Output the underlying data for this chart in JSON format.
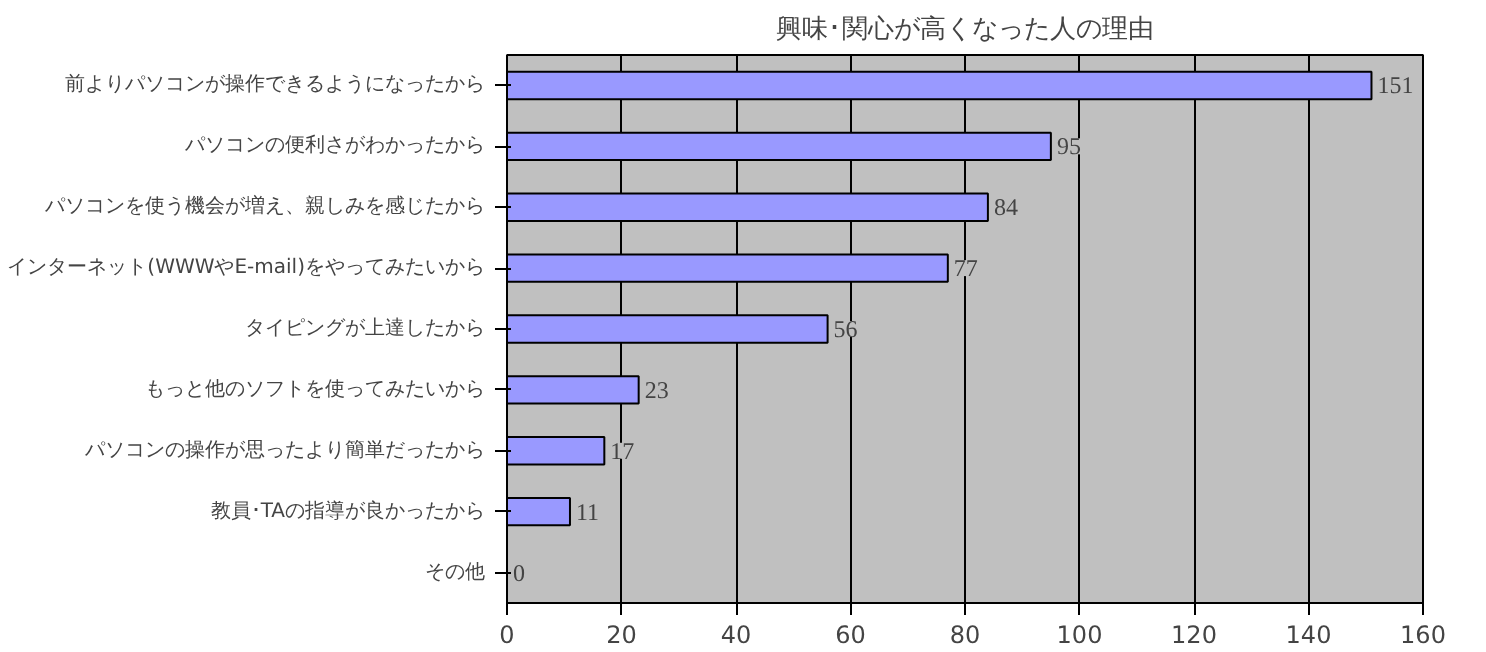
{
  "chart_data": {
    "type": "bar",
    "orientation": "horizontal",
    "title": "興味･関心が高くなった人の理由",
    "categories": [
      "前よりパソコンが操作できるようになったから",
      "パソコンの便利さがわかったから",
      "パソコンを使う機会が増え、親しみを感じたから",
      "インターネット(WWWやE-mail)をやってみたいから",
      "タイピングが上達したから",
      "もっと他のソフトを使ってみたいから",
      "パソコンの操作が思ったより簡単だったから",
      "教員･TAの指導が良かったから",
      "その他"
    ],
    "values": [
      151,
      95,
      84,
      77,
      56,
      23,
      17,
      11,
      0
    ],
    "color": "#9999ff",
    "xlim": [
      0,
      160
    ],
    "xticks": [
      0,
      20,
      40,
      60,
      80,
      100,
      120,
      140,
      160
    ],
    "grid": "x",
    "data_labels": true
  }
}
